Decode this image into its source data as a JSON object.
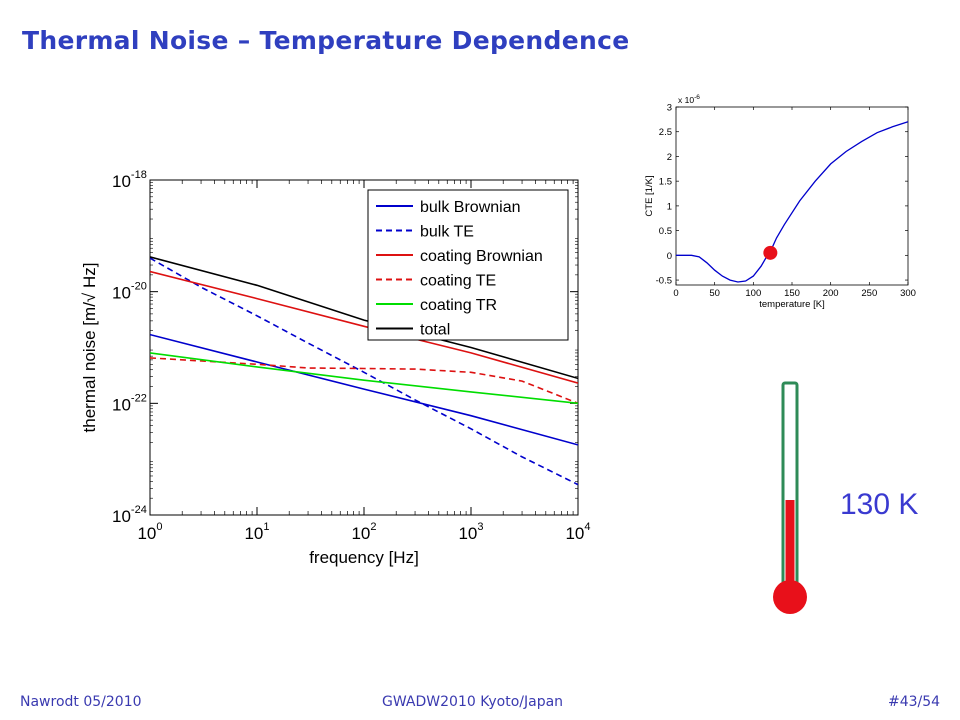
{
  "slide": {
    "title": "Thermal Noise – Temperature Dependence",
    "temperature_label": "130 K",
    "footer_left": "Nawrodt 05/2010",
    "footer_center": "GWADW2010 Kyoto/Japan",
    "footer_right": "#43/54"
  },
  "colors": {
    "title": "#2f3fbf",
    "thermometer_fill": "#e8101a",
    "thermometer_outline": "#2e8b57",
    "marker": "#e8101a"
  },
  "chart_data": [
    {
      "type": "line",
      "xlabel": "frequency [Hz]",
      "ylabel": "thermal noise [m/√ Hz]",
      "xscale": "log",
      "yscale": "log",
      "xlim": [
        1,
        10000
      ],
      "ylim": [
        1e-24,
        1e-18
      ],
      "x_ticks": [
        {
          "value": 1,
          "base": "10",
          "exp": "0"
        },
        {
          "value": 10,
          "base": "10",
          "exp": "1"
        },
        {
          "value": 100,
          "base": "10",
          "exp": "2"
        },
        {
          "value": 1000,
          "base": "10",
          "exp": "3"
        },
        {
          "value": 10000,
          "base": "10",
          "exp": "4"
        }
      ],
      "y_ticks": [
        {
          "value": 1e-18,
          "base": "10",
          "exp": "-18"
        },
        {
          "value": 1e-20,
          "base": "10",
          "exp": "-20"
        },
        {
          "value": 1e-22,
          "base": "10",
          "exp": "-22"
        },
        {
          "value": 1e-24,
          "base": "10",
          "exp": "-24"
        }
      ],
      "legend_position": "top-right",
      "series": [
        {
          "name": "bulk Brownian",
          "color": "#0000cc",
          "dash": false,
          "x": [
            1,
            10,
            100,
            1000,
            10000
          ],
          "y": [
            1.7e-21,
            5.5e-22,
            1.8e-22,
            6e-23,
            1.8e-23
          ]
        },
        {
          "name": "bulk TE",
          "color": "#0000cc",
          "dash": true,
          "x": [
            1,
            3,
            10,
            30,
            100,
            300,
            1000,
            3000,
            10000
          ],
          "y": [
            4e-20,
            1.2e-20,
            3.7e-21,
            1.2e-21,
            3.6e-22,
            1.15e-22,
            3.5e-23,
            1.1e-23,
            3.5e-24
          ]
        },
        {
          "name": "coating Brownian",
          "color": "#dd1111",
          "dash": false,
          "x": [
            1,
            10,
            100,
            1000,
            10000
          ],
          "y": [
            2.3e-20,
            7.5e-21,
            2.4e-21,
            8e-22,
            2.3e-22
          ]
        },
        {
          "name": "coating TE",
          "color": "#dd1111",
          "dash": true,
          "x": [
            1,
            10,
            30,
            100,
            300,
            1000,
            3000,
            10000
          ],
          "y": [
            6.5e-22,
            5e-22,
            4.3e-22,
            4.2e-22,
            4.1e-22,
            3.6e-22,
            2.5e-22,
            1e-22
          ]
        },
        {
          "name": "coating TR",
          "color": "#00dd00",
          "dash": false,
          "x": [
            1,
            10,
            100,
            1000,
            10000
          ],
          "y": [
            8e-22,
            4.5e-22,
            2.6e-22,
            1.6e-22,
            1e-22
          ]
        },
        {
          "name": "total",
          "color": "#000000",
          "dash": false,
          "x": [
            1,
            10,
            100,
            1000,
            10000
          ],
          "y": [
            4.2e-20,
            1.3e-20,
            3.1e-21,
            1e-21,
            2.8e-22
          ]
        }
      ]
    },
    {
      "type": "line",
      "xlabel": "temperature [K]",
      "ylabel": "CTE [1/K]",
      "multiplier": "x 10",
      "multiplier_exp": "-6",
      "xlim": [
        0,
        300
      ],
      "ylim": [
        -0.6,
        3
      ],
      "x_ticks": [
        "0",
        "50",
        "100",
        "150",
        "200",
        "250",
        "300"
      ],
      "y_ticks": [
        "-0.5",
        "0",
        "0.5",
        "1",
        "1.5",
        "2",
        "2.5",
        "3"
      ],
      "grid": false,
      "series": [
        {
          "color": "#0000cc",
          "x": [
            0,
            20,
            30,
            40,
            50,
            60,
            70,
            80,
            90,
            100,
            110,
            120,
            125,
            130,
            140,
            160,
            180,
            200,
            220,
            240,
            260,
            280,
            300
          ],
          "y": [
            0,
            0,
            -0.03,
            -0.15,
            -0.3,
            -0.42,
            -0.5,
            -0.54,
            -0.52,
            -0.42,
            -0.22,
            0.05,
            0.18,
            0.35,
            0.62,
            1.1,
            1.5,
            1.85,
            2.1,
            2.3,
            2.48,
            2.6,
            2.7
          ]
        }
      ],
      "marker": {
        "x": 122,
        "y": 0.05
      }
    }
  ]
}
